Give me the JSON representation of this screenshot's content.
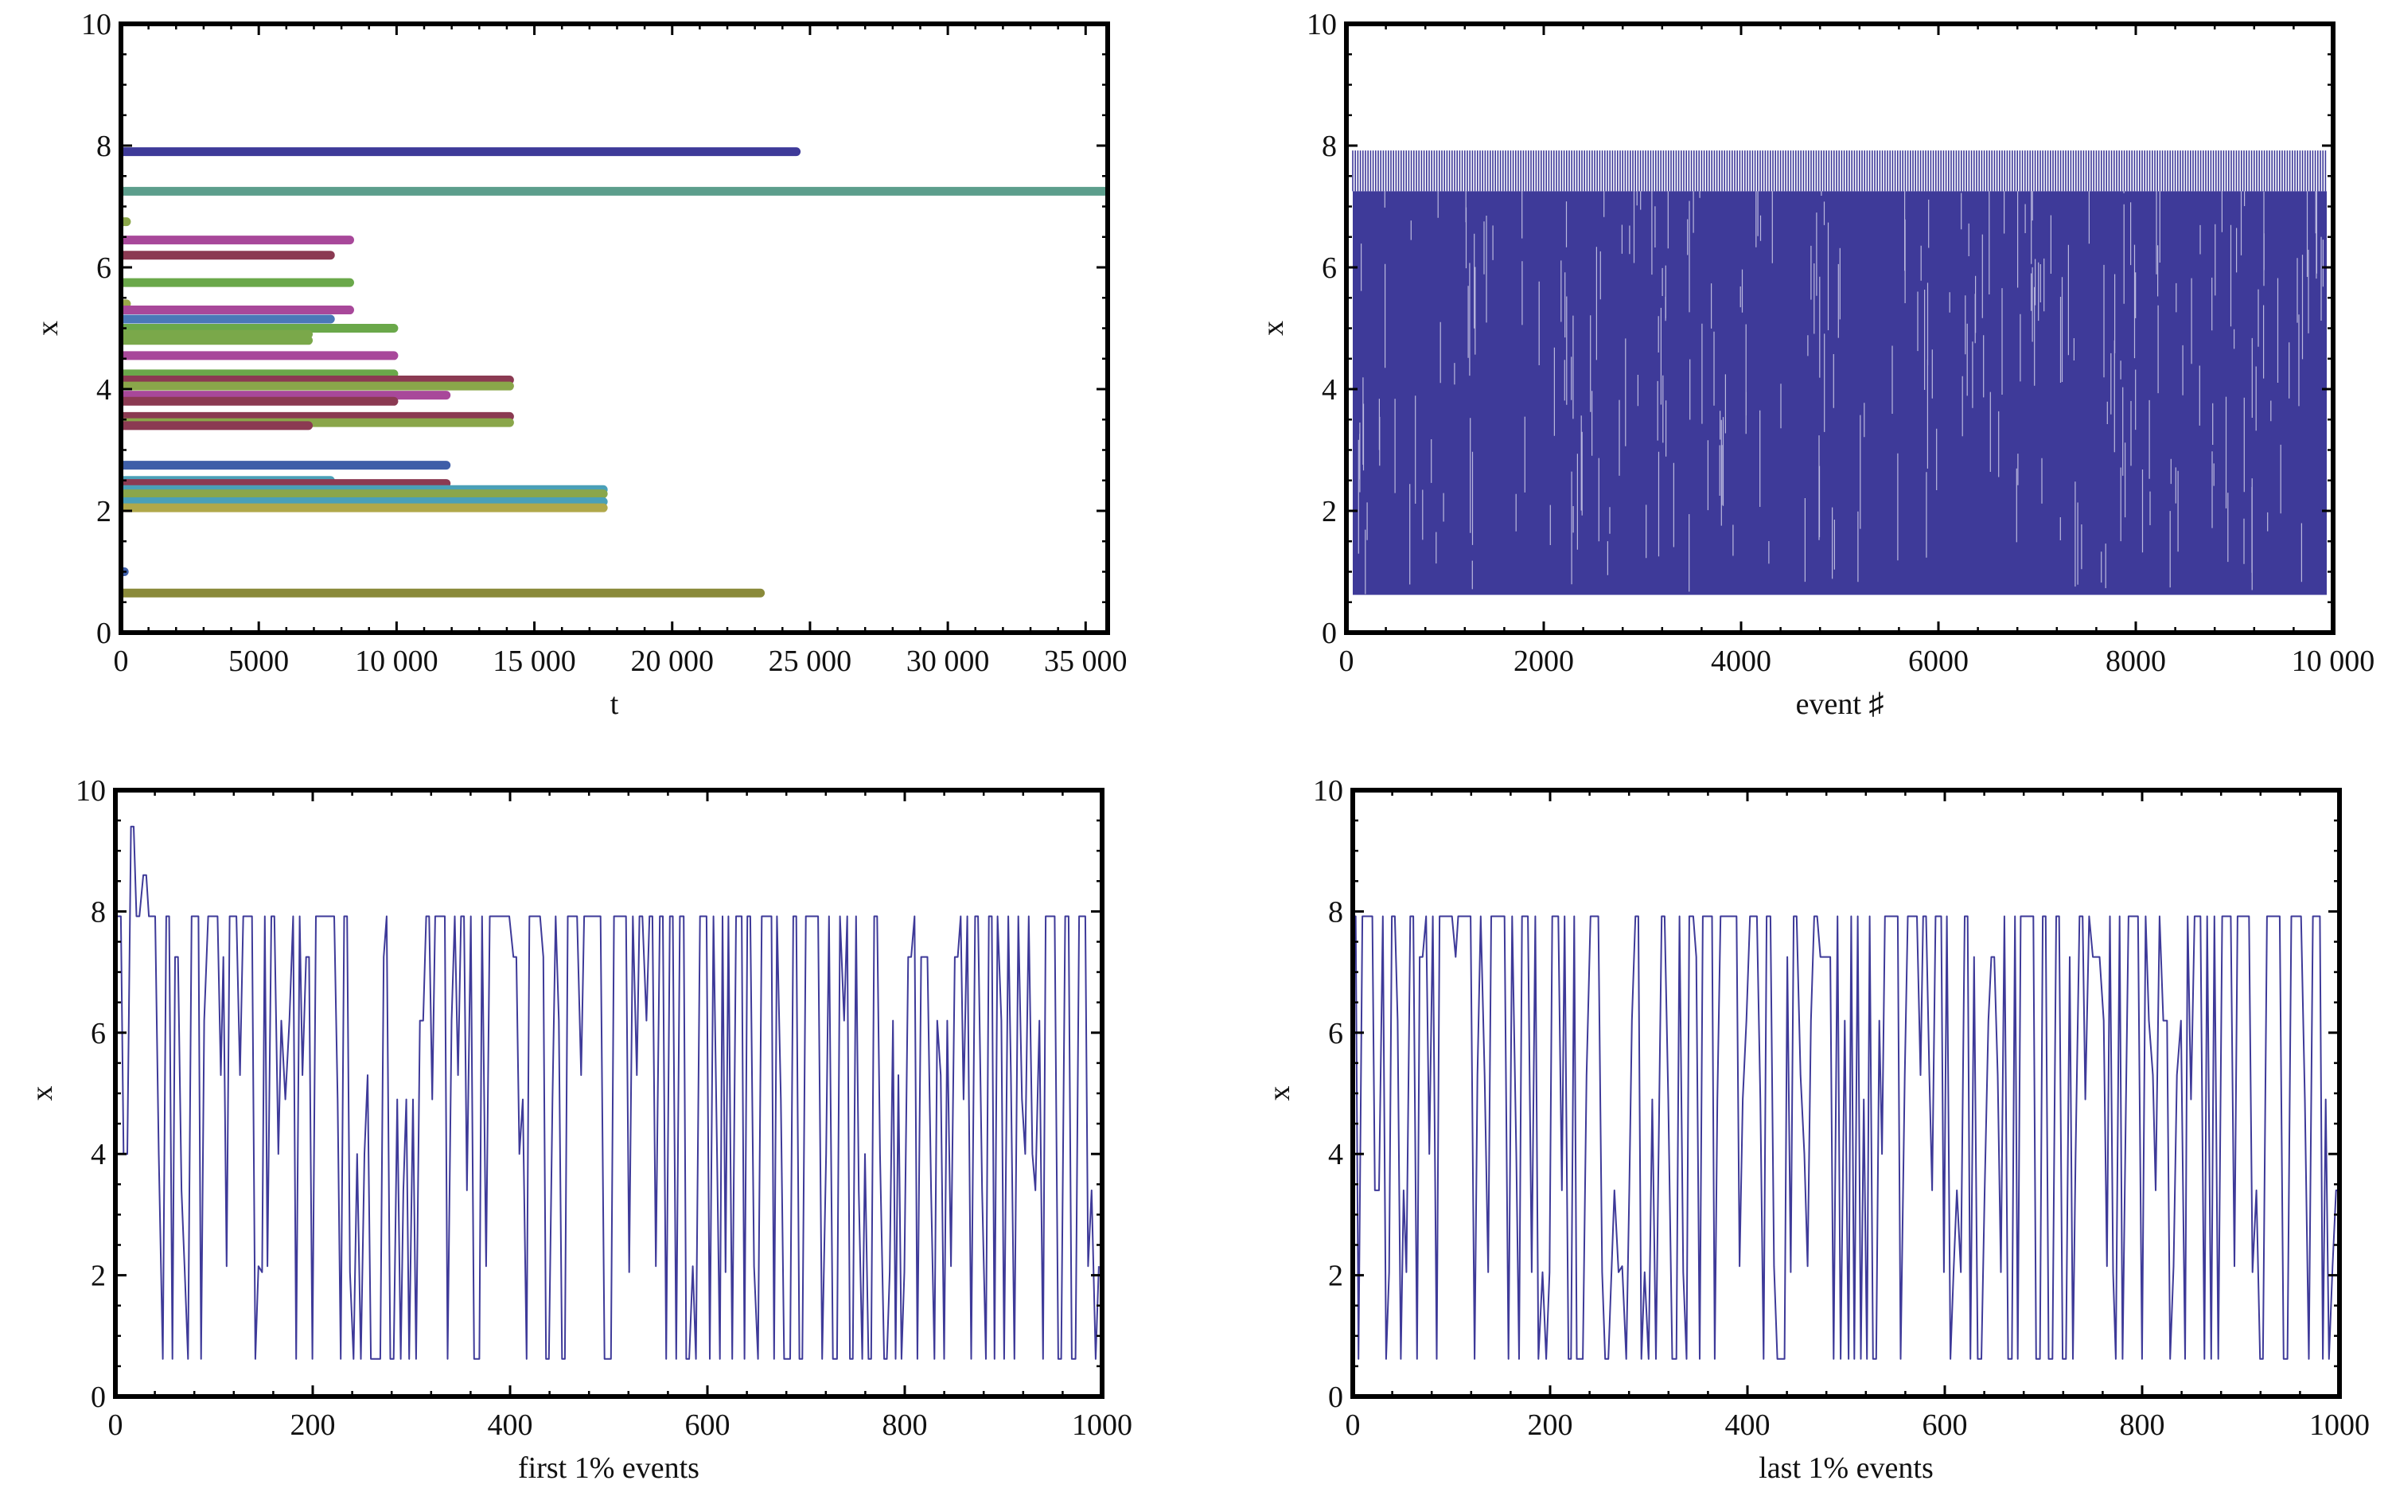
{
  "chart_data": [
    {
      "id": "top-left",
      "type": "line",
      "subtype": "horizontal-segments",
      "title": "",
      "xlabel": "t",
      "ylabel": "x",
      "xlim": [
        0,
        35800
      ],
      "ylim": [
        0,
        10
      ],
      "xticks": [
        0,
        5000,
        10000,
        15000,
        20000,
        25000,
        30000,
        35000
      ],
      "xtick_labels": [
        "0",
        "5000",
        "10 000",
        "15 000",
        "20 000",
        "25 000",
        "30 000",
        "35 000"
      ],
      "yticks": [
        0,
        2,
        4,
        6,
        8,
        10
      ],
      "ytick_labels": [
        "0",
        "2",
        "4",
        "6",
        "8",
        "10"
      ],
      "segments": [
        {
          "y": 7.9,
          "x_end": 24500,
          "color": "#3e3a99"
        },
        {
          "y": 7.25,
          "x_end": 35800,
          "color": "#5c9e8c"
        },
        {
          "y": 6.75,
          "x_end": 200,
          "color": "#8aa64a"
        },
        {
          "y": 6.45,
          "x_end": 8300,
          "color": "#a8489a"
        },
        {
          "y": 6.2,
          "x_end": 7600,
          "color": "#8b3a52"
        },
        {
          "y": 5.75,
          "x_end": 8300,
          "color": "#6aa84a"
        },
        {
          "y": 5.4,
          "x_end": 200,
          "color": "#9aa84a"
        },
        {
          "y": 5.3,
          "x_end": 8300,
          "color": "#a8489a"
        },
        {
          "y": 5.15,
          "x_end": 7600,
          "color": "#4a78b8"
        },
        {
          "y": 5.0,
          "x_end": 9900,
          "color": "#6aa84a"
        },
        {
          "y": 4.9,
          "x_end": 6800,
          "color": "#7aa84a"
        },
        {
          "y": 4.8,
          "x_end": 6800,
          "color": "#7aa84a"
        },
        {
          "y": 4.55,
          "x_end": 9900,
          "color": "#a8489a"
        },
        {
          "y": 4.25,
          "x_end": 9900,
          "color": "#6aa84a"
        },
        {
          "y": 4.15,
          "x_end": 14100,
          "color": "#8b3a52"
        },
        {
          "y": 4.05,
          "x_end": 14100,
          "color": "#8aa64a"
        },
        {
          "y": 3.9,
          "x_end": 11800,
          "color": "#a8489a"
        },
        {
          "y": 3.8,
          "x_end": 9900,
          "color": "#8b3a52"
        },
        {
          "y": 3.55,
          "x_end": 14100,
          "color": "#8b3a52"
        },
        {
          "y": 3.45,
          "x_end": 14100,
          "color": "#8aa64a"
        },
        {
          "y": 3.4,
          "x_end": 6800,
          "color": "#8b3a52"
        },
        {
          "y": 2.75,
          "x_end": 11800,
          "color": "#3e5ea8"
        },
        {
          "y": 2.5,
          "x_end": 7600,
          "color": "#4aa0b8"
        },
        {
          "y": 2.45,
          "x_end": 11800,
          "color": "#8b3a52"
        },
        {
          "y": 2.35,
          "x_end": 17500,
          "color": "#4aa0b8"
        },
        {
          "y": 2.28,
          "x_end": 17500,
          "color": "#8aa64a"
        },
        {
          "y": 2.15,
          "x_end": 17500,
          "color": "#4aa0b8"
        },
        {
          "y": 2.05,
          "x_end": 17500,
          "color": "#b0a84a"
        },
        {
          "y": 1.0,
          "x_end": 120,
          "color": "#3e5ea8"
        },
        {
          "y": 0.65,
          "x_end": 23200,
          "color": "#8a8a3a"
        }
      ]
    },
    {
      "id": "top-right",
      "type": "line",
      "subtype": "dense-band",
      "title": "",
      "xlabel": "event ♯",
      "ylabel": "x",
      "xlim": [
        0,
        10000
      ],
      "ylim": [
        0,
        10
      ],
      "xticks": [
        0,
        2000,
        4000,
        6000,
        8000,
        10000
      ],
      "xtick_labels": [
        "0",
        "2000",
        "4000",
        "6000",
        "8000",
        "10 000"
      ],
      "yticks": [
        0,
        2,
        4,
        6,
        8,
        10
      ],
      "ytick_labels": [
        "0",
        "2",
        "4",
        "6",
        "8",
        "10"
      ],
      "band_range": [
        0.62,
        7.25
      ],
      "band_edge": [
        0.62,
        7.92
      ],
      "levels": [
        0.62,
        2.05,
        2.15,
        3.4,
        4.0,
        4.9,
        5.3,
        6.2,
        7.25,
        7.92
      ],
      "color": "#3e3a99"
    },
    {
      "id": "bottom-left",
      "type": "line",
      "title": "",
      "xlabel": "first 1% events",
      "ylabel": "x",
      "xlim": [
        0,
        1000
      ],
      "ylim": [
        0,
        10
      ],
      "xticks": [
        0,
        200,
        400,
        600,
        800,
        1000
      ],
      "xtick_labels": [
        "0",
        "200",
        "400",
        "600",
        "800",
        "1000"
      ],
      "yticks": [
        0,
        2,
        4,
        6,
        8,
        10
      ],
      "ytick_labels": [
        "0",
        "2",
        "4",
        "6",
        "8",
        "10"
      ],
      "levels": [
        0.62,
        2.05,
        2.15,
        3.4,
        4.0,
        4.9,
        5.3,
        6.2,
        7.25,
        7.92
      ],
      "initial_spikes": [
        {
          "x": 18,
          "y": 9.4
        },
        {
          "x": 30,
          "y": 8.6
        }
      ],
      "color": "#3e3a99"
    },
    {
      "id": "bottom-right",
      "type": "line",
      "title": "",
      "xlabel": "last 1% events",
      "ylabel": "x",
      "xlim": [
        0,
        1000
      ],
      "ylim": [
        0,
        10
      ],
      "xticks": [
        0,
        200,
        400,
        600,
        800,
        1000
      ],
      "xtick_labels": [
        "0",
        "200",
        "400",
        "600",
        "800",
        "1000"
      ],
      "yticks": [
        0,
        2,
        4,
        6,
        8,
        10
      ],
      "ytick_labels": [
        "0",
        "2",
        "4",
        "6",
        "8",
        "10"
      ],
      "levels": [
        0.62,
        2.05,
        2.15,
        3.4,
        4.0,
        4.9,
        5.3,
        6.2,
        7.25,
        7.92
      ],
      "color": "#3e3a99"
    }
  ]
}
